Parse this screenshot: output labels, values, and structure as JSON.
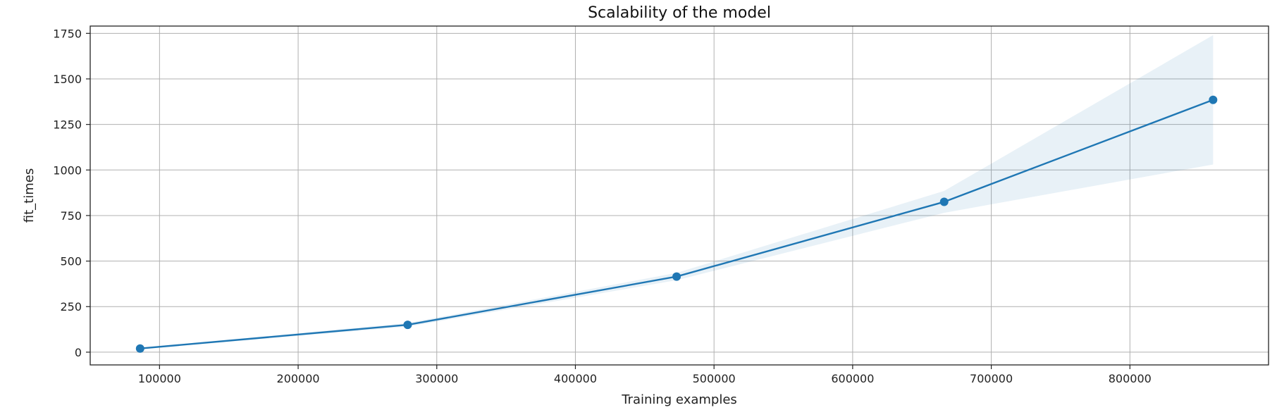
{
  "chart_data": {
    "type": "line",
    "title": "Scalability of the model",
    "xlabel": "Training examples",
    "ylabel": "fit_times",
    "xlim": [
      50000,
      900000
    ],
    "ylim": [
      -70,
      1790
    ],
    "x_ticks": [
      100000,
      200000,
      300000,
      400000,
      500000,
      600000,
      700000,
      800000
    ],
    "x_tick_labels": [
      "100000",
      "200000",
      "300000",
      "400000",
      "500000",
      "600000",
      "700000",
      "800000"
    ],
    "y_ticks": [
      0,
      250,
      500,
      750,
      1000,
      1250,
      1500,
      1750
    ],
    "y_tick_labels": [
      "0",
      "250",
      "500",
      "750",
      "1000",
      "1250",
      "1500",
      "1750"
    ],
    "grid": true,
    "series": [
      {
        "x": [
          86000,
          279000,
          473000,
          666000,
          860000
        ],
        "y": [
          20,
          150,
          415,
          825,
          1385
        ],
        "upper": [
          24,
          160,
          435,
          885,
          1740
        ],
        "lower": [
          16,
          140,
          395,
          765,
          1030
        ],
        "color": "#1f77b4",
        "band_color": "#1f77b4",
        "band_opacity": 0.1
      }
    ]
  }
}
